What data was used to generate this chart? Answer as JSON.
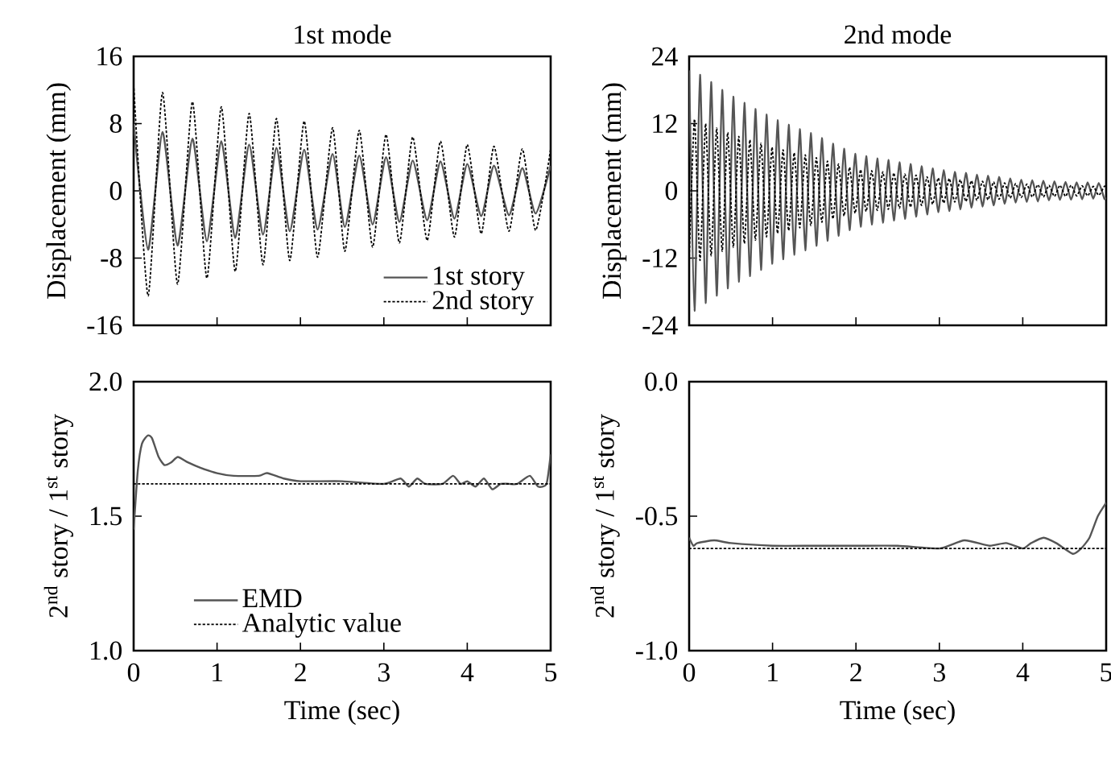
{
  "chart_data": [
    {
      "type": "line",
      "title": "1st mode",
      "ylabel": "Displacement (mm)",
      "xlim": [
        0,
        5
      ],
      "xticks": [
        0,
        1,
        2,
        3,
        4,
        5
      ],
      "ylim": [
        -16,
        16
      ],
      "yticks": [
        -16,
        -8,
        0,
        8,
        16
      ],
      "tick_labels": "y",
      "legend": "bottom right",
      "x": [
        0,
        0.173,
        0.346,
        0.526,
        0.705,
        0.878,
        1.051,
        1.218,
        1.385,
        1.551,
        1.712,
        1.872,
        2.045,
        2.205,
        2.385,
        2.532,
        2.705,
        2.865,
        3.026,
        3.186,
        3.346,
        3.519,
        3.679,
        3.846,
        4.0,
        4.167,
        4.32,
        4.5,
        4.66,
        4.82,
        5.0
      ],
      "series": [
        {
          "name": "1st story",
          "color": "#555555",
          "line_style": "solid",
          "values": [
            8.0,
            -7.0,
            7.0,
            -6.5,
            6.2,
            -6.0,
            5.9,
            -5.6,
            5.5,
            -5.2,
            5.1,
            -4.8,
            4.9,
            -4.6,
            4.4,
            -4.3,
            4.2,
            -4.0,
            4.0,
            -3.7,
            3.6,
            -3.5,
            3.5,
            -3.3,
            3.2,
            -3.0,
            3.0,
            -2.9,
            2.7,
            -2.7,
            3.0
          ]
        },
        {
          "name": "2nd story",
          "color": "#000000",
          "line_style": "dotted",
          "values": [
            12.7,
            -12.5,
            11.7,
            -11.1,
            10.6,
            -10.4,
            10.0,
            -9.6,
            9.2,
            -8.8,
            8.6,
            -8.3,
            8.3,
            -7.9,
            7.5,
            -7.2,
            7.2,
            -6.7,
            6.7,
            -6.2,
            6.4,
            -5.9,
            5.9,
            -5.5,
            5.5,
            -5.1,
            5.3,
            -4.8,
            5.0,
            -4.7,
            5.0
          ]
        }
      ]
    },
    {
      "type": "line",
      "title": "2nd mode",
      "ylabel": "Displacement (mm)",
      "xlim": [
        0,
        5
      ],
      "xticks": [
        0,
        1,
        2,
        3,
        4,
        5
      ],
      "ylim": [
        -24,
        24
      ],
      "yticks": [
        -24,
        -12,
        0,
        12,
        24
      ],
      "tick_labels": "y",
      "x": [
        0,
        0.064,
        0.13,
        0.197,
        0.263,
        0.33,
        0.396,
        0.462,
        0.529,
        0.595,
        0.662,
        0.728,
        0.794,
        0.861,
        0.927,
        0.994,
        1.06,
        1.126,
        1.193,
        1.259,
        1.326,
        1.392,
        1.458,
        1.525,
        1.591,
        1.658,
        1.724,
        1.79,
        1.857,
        1.923,
        1.99,
        2.056,
        2.122,
        2.189,
        2.255,
        2.322,
        2.388,
        2.454,
        2.521,
        2.587,
        2.654,
        2.72,
        2.786,
        2.853,
        2.919,
        2.986,
        3.052,
        3.118,
        3.185,
        3.251,
        3.318,
        3.384,
        3.45,
        3.517,
        3.583,
        3.65,
        3.716,
        3.782,
        3.849,
        3.915,
        3.982,
        4.048,
        4.114,
        4.181,
        4.247,
        4.314,
        4.38,
        4.446,
        4.513,
        4.579,
        4.646,
        4.712,
        4.778,
        4.845,
        4.911,
        4.978,
        5.0
      ],
      "series": [
        {
          "color": "#555555",
          "line_style": "solid",
          "values": [
            21.5,
            -21.4,
            20.7,
            -20.0,
            19.4,
            -18.7,
            18.0,
            -17.4,
            16.8,
            -16.2,
            15.7,
            -15.2,
            14.6,
            -14.1,
            13.6,
            -13.0,
            12.6,
            -12.2,
            11.8,
            -11.4,
            11.0,
            -10.6,
            10.3,
            -9.8,
            9.4,
            -8.9,
            8.4,
            -8.0,
            7.5,
            -7.0,
            6.6,
            -6.4,
            6.2,
            -6.0,
            5.8,
            -5.7,
            5.5,
            -5.3,
            5.1,
            -5.0,
            4.8,
            -4.6,
            4.4,
            -4.2,
            4.0,
            -3.8,
            3.7,
            -3.6,
            3.4,
            -3.3,
            3.2,
            -3.0,
            2.9,
            -2.8,
            2.7,
            -2.6,
            2.5,
            -2.3,
            2.2,
            -2.1,
            2.0,
            -2.0,
            1.9,
            -1.9,
            1.8,
            -1.7,
            1.7,
            -1.6,
            1.6,
            -1.6,
            1.5,
            -1.5,
            1.5,
            -1.4,
            1.4,
            -1.4,
            -1.2
          ]
        },
        {
          "color": "#000000",
          "line_style": "dotted",
          "values": [
            -12.5,
            12.8,
            -12.4,
            12.0,
            -11.6,
            11.2,
            -10.8,
            10.4,
            -10.1,
            9.7,
            -9.4,
            9.1,
            -8.8,
            8.5,
            -8.2,
            7.8,
            -7.6,
            7.3,
            -7.1,
            6.8,
            -6.6,
            6.4,
            -6.2,
            5.9,
            -5.6,
            5.3,
            -5.0,
            4.8,
            -4.5,
            4.2,
            -4.0,
            3.8,
            -3.7,
            3.6,
            -3.5,
            3.4,
            -3.3,
            3.2,
            -3.1,
            3.0,
            -2.9,
            2.8,
            -2.6,
            2.5,
            -2.4,
            2.3,
            -2.2,
            2.2,
            -2.0,
            2.0,
            -1.9,
            1.8,
            -1.7,
            1.7,
            -1.6,
            1.6,
            -1.5,
            1.4,
            -1.3,
            1.3,
            -1.2,
            1.2,
            -1.1,
            1.1,
            -1.1,
            1.0,
            -1.0,
            1.0,
            -1.0,
            1.0,
            -0.9,
            0.9,
            -0.9,
            0.8,
            -0.8,
            0.8,
            0.7
          ]
        }
      ]
    },
    {
      "type": "line",
      "xlabel": "Time (sec)",
      "ylabel": "2$^{nd}$ story / 1$^{st}$ story",
      "xlim": [
        0,
        5
      ],
      "xticks": [
        0,
        1,
        2,
        3,
        4,
        5
      ],
      "ylim": [
        1,
        2
      ],
      "yticks": [
        {
          "value": 1,
          "label": "1.0"
        },
        {
          "value": 1.5,
          "label": "1.5"
        },
        {
          "value": 2,
          "label": "2.0"
        }
      ],
      "legend": "bottom left",
      "series": [
        {
          "name": "EMD",
          "color": "#555555",
          "line_style": "solid",
          "x": [
            0,
            0.05,
            0.1,
            0.17,
            0.22,
            0.3,
            0.37,
            0.45,
            0.53,
            0.65,
            0.8,
            1.0,
            1.2,
            1.5,
            1.6,
            1.8,
            2.0,
            2.5,
            3.0,
            3.2,
            3.3,
            3.4,
            3.5,
            3.7,
            3.83,
            3.92,
            4.0,
            4.1,
            4.2,
            4.3,
            4.4,
            4.5,
            4.6,
            4.75,
            4.85,
            4.95,
            5.0
          ],
          "values": [
            1.45,
            1.67,
            1.77,
            1.8,
            1.79,
            1.72,
            1.69,
            1.7,
            1.72,
            1.7,
            1.68,
            1.66,
            1.65,
            1.65,
            1.66,
            1.64,
            1.63,
            1.63,
            1.62,
            1.64,
            1.61,
            1.64,
            1.62,
            1.62,
            1.65,
            1.62,
            1.63,
            1.61,
            1.64,
            1.6,
            1.62,
            1.62,
            1.62,
            1.65,
            1.61,
            1.62,
            1.73
          ]
        },
        {
          "name": "Analytic value",
          "color": "#000000",
          "line_style": "dotted",
          "x": [
            0,
            5
          ],
          "values": [
            1.62,
            1.62
          ]
        }
      ]
    },
    {
      "type": "line",
      "xlabel": "Time (sec)",
      "ylabel": "2$^{nd}$ story / 1$^{st}$ story",
      "xlim": [
        0,
        5
      ],
      "xticks": [
        0,
        1,
        2,
        3,
        4,
        5
      ],
      "ylim": [
        -1,
        0
      ],
      "yticks": [
        {
          "value": -1,
          "label": "-1.0"
        },
        {
          "value": -0.5,
          "label": "-0.5"
        },
        {
          "value": 0,
          "label": "0.0"
        }
      ],
      "series": [
        {
          "color": "#555555",
          "line_style": "solid",
          "x": [
            0,
            0.05,
            0.1,
            0.3,
            0.5,
            1.0,
            1.5,
            2.0,
            2.5,
            3.0,
            3.3,
            3.6,
            3.8,
            4.0,
            4.1,
            4.25,
            4.4,
            4.6,
            4.7,
            4.8,
            4.9,
            5.0
          ],
          "values": [
            -0.58,
            -0.61,
            -0.6,
            -0.59,
            -0.6,
            -0.61,
            -0.61,
            -0.61,
            -0.61,
            -0.62,
            -0.59,
            -0.61,
            -0.6,
            -0.62,
            -0.6,
            -0.58,
            -0.6,
            -0.64,
            -0.62,
            -0.58,
            -0.5,
            -0.45
          ]
        },
        {
          "color": "#000000",
          "line_style": "dotted",
          "x": [
            0,
            5
          ],
          "values": [
            -0.62,
            -0.62
          ]
        }
      ]
    }
  ]
}
